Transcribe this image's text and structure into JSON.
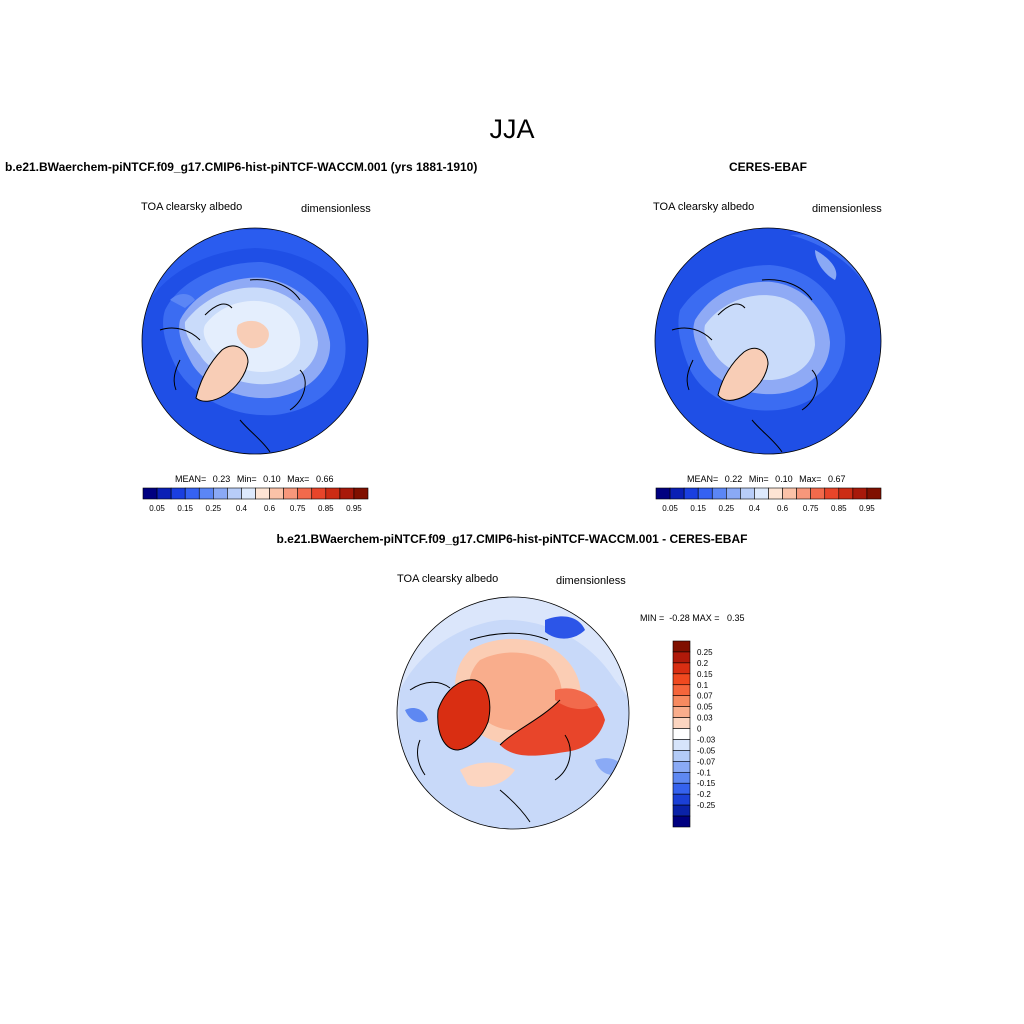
{
  "main_title": "JJA",
  "panels": [
    {
      "title": "b.e21.BWaerchem-piNTCF.f09_g17.CMIP6-hist-piNTCF-WACCM.001 (yrs 1881-1910)",
      "variable": "TOA clearsky albedo",
      "units": "dimensionless",
      "stats": {
        "mean_label": "MEAN=",
        "mean": "0.23",
        "min_label": "Min=",
        "min": "0.10",
        "max_label": "Max=",
        "max": "0.66"
      }
    },
    {
      "title": "CERES-EBAF",
      "variable": "TOA clearsky albedo",
      "units": "dimensionless",
      "stats": {
        "mean_label": "MEAN=",
        "mean": "0.22",
        "min_label": "Min=",
        "min": "0.10",
        "max_label": "Max=",
        "max": "0.67"
      }
    },
    {
      "title": "b.e21.BWaerchem-piNTCF.f09_g17.CMIP6-hist-piNTCF-WACCM.001 - CERES-EBAF",
      "variable": "TOA clearsky albedo",
      "units": "dimensionless",
      "minmax": "MIN =  -0.28 MAX =   0.35"
    }
  ],
  "colorbar_abs": {
    "colors": [
      "#000080",
      "#0a1fb5",
      "#1a3fe0",
      "#3562f2",
      "#5b86f5",
      "#8aa9f5",
      "#b8cdf8",
      "#dde9fc",
      "#fde4d4",
      "#fbc2a8",
      "#f7977b",
      "#f26a4c",
      "#e8452a",
      "#cc2c14",
      "#a8190a",
      "#801000"
    ],
    "tick_labels": [
      "0.05",
      "0.15",
      "0.25",
      "0.4",
      "0.6",
      "0.75",
      "0.85",
      "0.95"
    ]
  },
  "colorbar_diff": {
    "colors": [
      "#801000",
      "#b01a0a",
      "#d92e12",
      "#f0491f",
      "#f5653b",
      "#f78a60",
      "#f9ad8c",
      "#fcd5c0",
      "#ffffff",
      "#d6e4fb",
      "#b3cbf7",
      "#8aaaf5",
      "#5e88f2",
      "#3562ee",
      "#1b40d6",
      "#0a22a8",
      "#000080"
    ],
    "tick_labels": [
      "0.25",
      "0.2",
      "0.15",
      "0.1",
      "0.07",
      "0.05",
      "0.03",
      "0",
      "-0.03",
      "-0.05",
      "-0.07",
      "-0.1",
      "-0.15",
      "-0.2",
      "-0.25"
    ]
  }
}
